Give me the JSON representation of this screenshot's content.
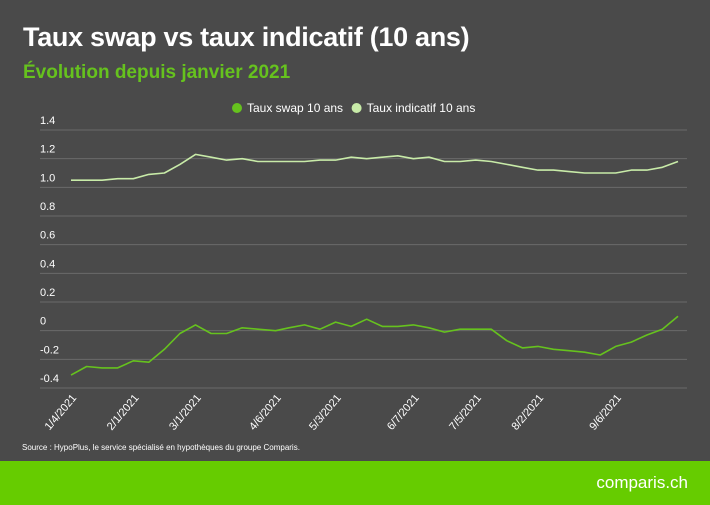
{
  "header": {
    "title": "Taux swap vs taux indicatif (10 ans)",
    "subtitle": "Évolution depuis janvier 2021"
  },
  "source": "Source : HypoPlus, le service spécialisé en hypothèques du groupe Comparis.",
  "footer": {
    "logo": "comparis.ch",
    "color": "#66cc00"
  },
  "chart_data": {
    "type": "line",
    "title": "Taux swap vs taux indicatif (10 ans)",
    "subtitle": "Évolution depuis janvier 2021",
    "xlabel": "",
    "ylabel": "",
    "ylim": [
      -0.4,
      1.4
    ],
    "yticks": [
      1.4,
      1.2,
      1.0,
      0.8,
      0.6,
      0.4,
      0.2,
      0,
      -0.2,
      -0.4
    ],
    "ytick_labels": [
      "1.4",
      "1.2",
      "1.0",
      "0.8",
      "0.6",
      "0.4",
      "0.2",
      "0",
      "-0.2",
      "-0.4"
    ],
    "xticks": [
      "2021-01-04",
      "2021-02-01",
      "2021-03-01",
      "2021-04-06",
      "2021-05-03",
      "2021-06-07",
      "2021-07-05",
      "2021-08-02",
      "2021-09-06"
    ],
    "xtick_labels": [
      "1/4/2021",
      "2/1/2021",
      "3/1/2021",
      "4/6/2021",
      "5/3/2021",
      "6/7/2021",
      "7/5/2021",
      "8/2/2021",
      "9/6/2021"
    ],
    "grid": true,
    "legend_position": "top",
    "x": [
      "2021-01-04",
      "2021-01-11",
      "2021-01-18",
      "2021-01-25",
      "2021-02-01",
      "2021-02-08",
      "2021-02-15",
      "2021-02-22",
      "2021-03-01",
      "2021-03-08",
      "2021-03-15",
      "2021-03-22",
      "2021-03-29",
      "2021-04-06",
      "2021-04-12",
      "2021-04-19",
      "2021-04-26",
      "2021-05-03",
      "2021-05-10",
      "2021-05-17",
      "2021-05-24",
      "2021-05-31",
      "2021-06-07",
      "2021-06-14",
      "2021-06-21",
      "2021-06-28",
      "2021-07-05",
      "2021-07-12",
      "2021-07-19",
      "2021-07-26",
      "2021-08-02",
      "2021-08-09",
      "2021-08-16",
      "2021-08-23",
      "2021-08-30",
      "2021-09-06",
      "2021-09-13",
      "2021-09-20",
      "2021-09-27",
      "2021-10-04"
    ],
    "series": [
      {
        "name": "Taux swap 10 ans",
        "color": "#66c21e",
        "values": [
          -0.31,
          -0.25,
          -0.26,
          -0.26,
          -0.21,
          -0.22,
          -0.13,
          -0.02,
          0.04,
          -0.02,
          -0.02,
          0.02,
          0.01,
          0.0,
          0.02,
          0.04,
          0.01,
          0.06,
          0.03,
          0.08,
          0.03,
          0.03,
          0.04,
          0.02,
          -0.01,
          0.01,
          0.01,
          0.01,
          -0.07,
          -0.12,
          -0.11,
          -0.13,
          -0.14,
          -0.15,
          -0.17,
          -0.11,
          -0.08,
          -0.03,
          0.01,
          0.1
        ]
      },
      {
        "name": "Taux indicatif 10 ans",
        "color": "#c8eba8",
        "values": [
          1.05,
          1.05,
          1.05,
          1.06,
          1.06,
          1.09,
          1.1,
          1.16,
          1.23,
          1.21,
          1.19,
          1.2,
          1.18,
          1.18,
          1.18,
          1.18,
          1.19,
          1.19,
          1.21,
          1.2,
          1.21,
          1.22,
          1.2,
          1.21,
          1.18,
          1.18,
          1.19,
          1.18,
          1.16,
          1.14,
          1.12,
          1.12,
          1.11,
          1.1,
          1.1,
          1.1,
          1.12,
          1.12,
          1.14,
          1.18
        ]
      }
    ]
  }
}
